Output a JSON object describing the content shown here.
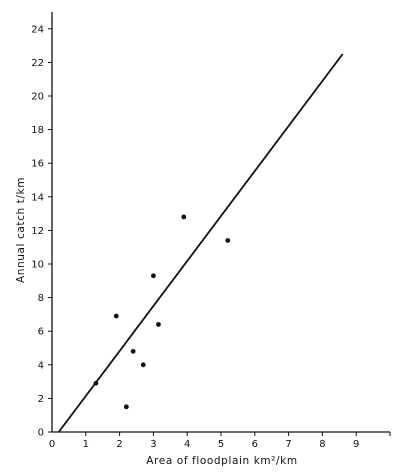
{
  "chart_data": {
    "type": "scatter",
    "xlabel": "Area of floodplain km²/km",
    "ylabel": "Annual catch t/km",
    "xlim": [
      0,
      10
    ],
    "ylim": [
      0,
      25
    ],
    "x_ticks": [
      "0",
      "1",
      "2",
      "3",
      "4",
      "5",
      "6",
      "7",
      "8",
      "9"
    ],
    "y_ticks": [
      "0",
      "2",
      "4",
      "6",
      "8",
      "10",
      "12",
      "14",
      "16",
      "18",
      "20",
      "22",
      "24"
    ],
    "grid": false,
    "series": [
      {
        "points": [
          {
            "x": 1.3,
            "y": 2.9
          },
          {
            "x": 1.9,
            "y": 6.9
          },
          {
            "x": 2.2,
            "y": 1.5
          },
          {
            "x": 2.4,
            "y": 4.8
          },
          {
            "x": 2.7,
            "y": 4.0
          },
          {
            "x": 3.0,
            "y": 9.3
          },
          {
            "x": 3.15,
            "y": 6.4
          },
          {
            "x": 3.9,
            "y": 12.8
          },
          {
            "x": 5.2,
            "y": 11.4
          }
        ]
      }
    ],
    "regression_line": {
      "x1": 0.2,
      "y1": 0.0,
      "x2": 8.6,
      "y2": 22.5
    },
    "colors": {
      "axis": "#111111",
      "points": "#111111",
      "line": "#111111"
    }
  }
}
